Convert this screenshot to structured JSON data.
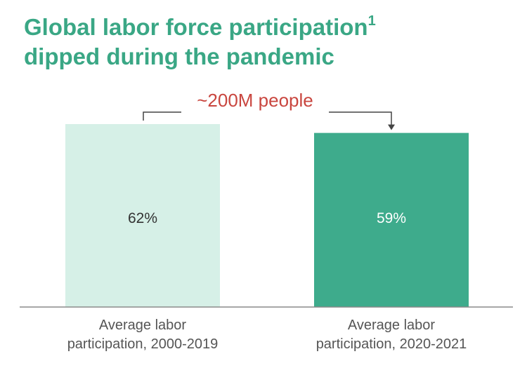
{
  "title": {
    "line1": "Global labor force participation",
    "footnote_marker": "1",
    "line2": "dipped during the pandemic"
  },
  "colors": {
    "title": "#3aa785",
    "bar_light": "#d6f0e7",
    "bar_dark": "#3eab8c",
    "annotation": "#c9463f",
    "axis": "#8a8a8a"
  },
  "chart_data": {
    "type": "bar",
    "categories": [
      "Average labor participation, 2000-2019",
      "Average labor participation, 2020-2021"
    ],
    "category_label_lines": [
      [
        "Average labor",
        "participation, 2000-2019"
      ],
      [
        "Average labor",
        "participation, 2020-2021"
      ]
    ],
    "values": [
      62,
      59
    ],
    "data_labels": [
      "62%",
      "59%"
    ],
    "bar_colors": [
      "#d6f0e7",
      "#3eab8c"
    ],
    "label_colors": [
      "#333333",
      "#ffffff"
    ],
    "annotation": {
      "text": "~200M people",
      "from": 0,
      "to": 1
    },
    "ylim": [
      0,
      62
    ],
    "grid": false,
    "legend": "none"
  }
}
